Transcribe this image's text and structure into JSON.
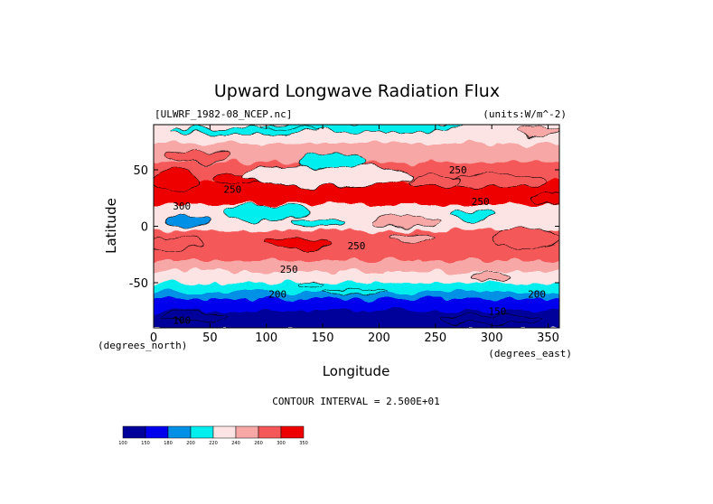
{
  "chart_data": {
    "type": "heatmap",
    "title": "Upward Longwave Radiation Flux",
    "dataset_label": "[ULWRF_1982-08_NCEP.nc]",
    "units_label": "(units:W/m^-2)",
    "xlabel": "Longitude",
    "ylabel": "Latitude",
    "x_units": "(degrees_east)",
    "y_units": "(degrees_north)",
    "xlim": [
      0,
      360
    ],
    "ylim": [
      -90,
      90
    ],
    "x_ticks": [
      0,
      50,
      100,
      150,
      200,
      250,
      300,
      350
    ],
    "y_ticks": [
      -50,
      0,
      50
    ],
    "contour_interval_text": "CONTOUR INTERVAL = 2.500E+01",
    "contour_labels": [
      {
        "text": "250",
        "lon": 270,
        "lat": 50
      },
      {
        "text": "250",
        "lon": 290,
        "lat": 22
      },
      {
        "text": "250",
        "lon": 180,
        "lat": -17
      },
      {
        "text": "250",
        "lon": 120,
        "lat": -38
      },
      {
        "text": "200",
        "lon": 110,
        "lat": -60
      },
      {
        "text": "200",
        "lon": 340,
        "lat": -60
      },
      {
        "text": "100",
        "lon": 25,
        "lat": -83
      },
      {
        "text": "150",
        "lon": 305,
        "lat": -75
      },
      {
        "text": "250",
        "lon": 70,
        "lat": 33
      },
      {
        "text": "300",
        "lon": 25,
        "lat": 18
      }
    ],
    "legend": {
      "levels": [
        100,
        150,
        180,
        200,
        220,
        240,
        260,
        300,
        350
      ],
      "colors": [
        "#00009b",
        "#0000ee",
        "#0091e6",
        "#00eeee",
        "#fce4e4",
        "#f8a7a7",
        "#f45858",
        "#ee0000"
      ]
    },
    "bands": [
      {
        "lat_from": 90,
        "lat_to": 72,
        "value": 220
      },
      {
        "lat_from": 72,
        "lat_to": 55,
        "value": 240
      },
      {
        "lat_from": 55,
        "lat_to": 38,
        "value": 260
      },
      {
        "lat_from": 38,
        "lat_to": 18,
        "value": 300
      },
      {
        "lat_from": 18,
        "lat_to": 6,
        "value": 230
      },
      {
        "lat_from": 6,
        "lat_to": -5,
        "value": 220
      },
      {
        "lat_from": -5,
        "lat_to": -32,
        "value": 270
      },
      {
        "lat_from": -32,
        "lat_to": -42,
        "value": 250
      },
      {
        "lat_from": -42,
        "lat_to": -52,
        "value": 230
      },
      {
        "lat_from": -52,
        "lat_to": -60,
        "value": 210
      },
      {
        "lat_from": -60,
        "lat_to": -66,
        "value": 190
      },
      {
        "lat_from": -66,
        "lat_to": -76,
        "value": 160
      },
      {
        "lat_from": -76,
        "lat_to": -90,
        "value": 130
      }
    ],
    "features": [
      {
        "lon": 185,
        "lat": 88,
        "w": 180,
        "h": 8,
        "value": 210
      },
      {
        "lon": 80,
        "lat": 84,
        "w": 130,
        "h": 6,
        "value": 210
      },
      {
        "lon": 340,
        "lat": 84,
        "w": 40,
        "h": 8,
        "value": 240
      },
      {
        "lon": 40,
        "lat": 62,
        "w": 60,
        "h": 10,
        "value": 260
      },
      {
        "lon": 20,
        "lat": 40,
        "w": 40,
        "h": 20,
        "value": 310
      },
      {
        "lon": 75,
        "lat": 42,
        "w": 50,
        "h": 10,
        "value": 310
      },
      {
        "lon": 305,
        "lat": 40,
        "w": 90,
        "h": 12,
        "value": 270
      },
      {
        "lon": 355,
        "lat": 25,
        "w": 40,
        "h": 10,
        "value": 300
      },
      {
        "lon": 250,
        "lat": 40,
        "w": 45,
        "h": 10,
        "value": 290
      },
      {
        "lon": 155,
        "lat": 45,
        "w": 150,
        "h": 20,
        "value": 230
      },
      {
        "lon": 160,
        "lat": 58,
        "w": 60,
        "h": 14,
        "value": 210
      },
      {
        "lon": 100,
        "lat": 12,
        "w": 80,
        "h": 14,
        "value": 210
      },
      {
        "lon": 30,
        "lat": 5,
        "w": 40,
        "h": 10,
        "value": 190
      },
      {
        "lon": 145,
        "lat": 3,
        "w": 50,
        "h": 6,
        "value": 200
      },
      {
        "lon": 285,
        "lat": 10,
        "w": 40,
        "h": 10,
        "value": 200
      },
      {
        "lon": 225,
        "lat": 5,
        "w": 60,
        "h": 10,
        "value": 240
      },
      {
        "lon": 20,
        "lat": -15,
        "w": 50,
        "h": 12,
        "value": 290
      },
      {
        "lon": 130,
        "lat": -15,
        "w": 60,
        "h": 8,
        "value": 310
      },
      {
        "lon": 330,
        "lat": -10,
        "w": 60,
        "h": 18,
        "value": 290
      },
      {
        "lon": 230,
        "lat": -10,
        "w": 40,
        "h": 8,
        "value": 240
      },
      {
        "lon": 300,
        "lat": -45,
        "w": 40,
        "h": 8,
        "value": 240
      },
      {
        "lon": 140,
        "lat": -52,
        "w": 20,
        "h": 4,
        "value": 200
      },
      {
        "lon": 180,
        "lat": -58,
        "w": 60,
        "h": 4,
        "value": 200
      },
      {
        "lon": 35,
        "lat": -80,
        "w": 60,
        "h": 8,
        "value": 110
      },
      {
        "lon": 300,
        "lat": -82,
        "w": 90,
        "h": 8,
        "value": 110
      }
    ]
  }
}
